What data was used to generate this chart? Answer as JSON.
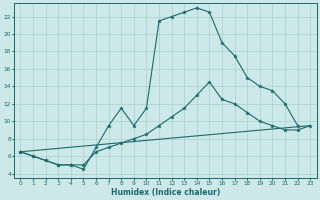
{
  "xlabel": "Humidex (Indice chaleur)",
  "xlim": [
    -0.5,
    23.5
  ],
  "ylim": [
    3.5,
    23.5
  ],
  "yticks": [
    4,
    6,
    8,
    10,
    12,
    14,
    16,
    18,
    20,
    22
  ],
  "xticks": [
    0,
    1,
    2,
    3,
    4,
    5,
    6,
    7,
    8,
    9,
    10,
    11,
    12,
    13,
    14,
    15,
    16,
    17,
    18,
    19,
    20,
    21,
    22,
    23
  ],
  "bg_color": "#cce8e8",
  "grid_color": "#aacfcf",
  "line_color": "#1a6b6b",
  "line1_x": [
    0,
    1,
    2,
    3,
    4,
    5,
    6,
    7,
    8,
    9,
    10,
    11,
    12,
    13,
    14,
    15,
    16,
    17,
    18,
    19,
    20,
    21,
    22
  ],
  "line1_y": [
    6.5,
    6.0,
    5.5,
    5.0,
    5.0,
    4.5,
    7.0,
    9.5,
    11.5,
    9.5,
    11.5,
    21.5,
    22.0,
    22.5,
    23.0,
    22.5,
    19.0,
    17.5,
    15.0,
    14.0,
    13.5,
    12.0,
    9.5
  ],
  "line2_x": [
    0,
    1,
    2,
    3,
    4,
    5,
    6,
    7,
    8,
    9,
    10,
    11,
    12,
    13,
    14,
    15,
    16,
    17,
    18,
    19,
    20,
    21,
    22,
    23
  ],
  "line2_y": [
    6.5,
    6.0,
    5.5,
    5.0,
    5.0,
    5.0,
    6.5,
    7.0,
    7.5,
    8.0,
    8.5,
    9.5,
    10.5,
    11.5,
    13.0,
    14.5,
    12.5,
    12.0,
    11.0,
    10.0,
    9.5,
    9.0,
    9.0,
    9.5
  ],
  "line3_x": [
    0,
    23
  ],
  "line3_y": [
    6.5,
    9.5
  ]
}
